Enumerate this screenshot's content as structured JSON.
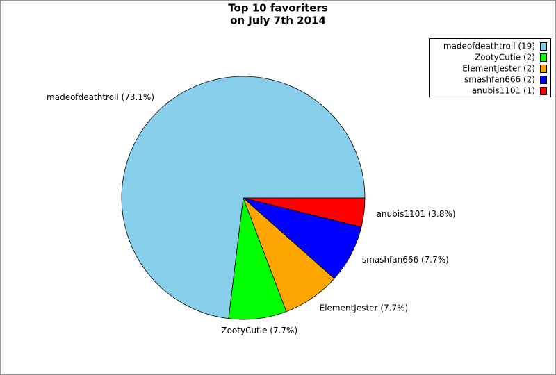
{
  "chart_data": {
    "type": "pie",
    "title": "Top 10 favoriters",
    "subtitle": "on July 7th 2014",
    "categories": [
      "madeofdeathtroll (19)",
      "ZootyCutie (2)",
      "ElementJester (2)",
      "smashfan666 (2)",
      "anubis1101 (1)"
    ],
    "values": [
      19,
      2,
      2,
      2,
      1
    ],
    "value_labels": [
      "madeofdeathtroll (73.1%)",
      "ZootyCutie (7.7%)",
      "ElementJester (7.7%)",
      "smashfan666 (7.7%)",
      "anubis1101 (3.8%)"
    ],
    "colors": [
      "#87ceeb",
      "#00ff00",
      "#ffa500",
      "#0000ff",
      "#ff0000"
    ],
    "legend": "upper right"
  }
}
